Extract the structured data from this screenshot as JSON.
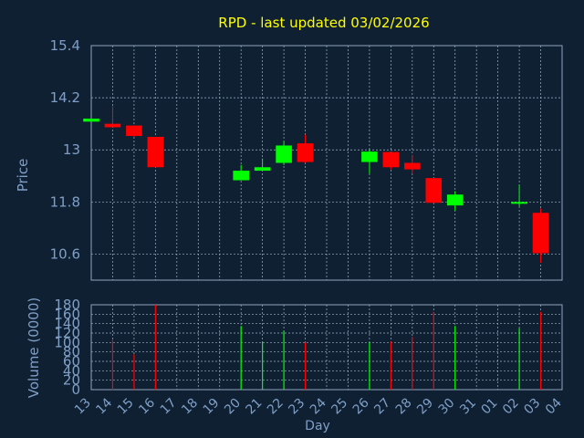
{
  "colors": {
    "background": "#0f2033",
    "title": "#ffff00",
    "axis_text": "#7f9fc7",
    "grid": "#9fb3c8",
    "axis_line": "#8fa4bc",
    "up": "#00ff00",
    "down": "#ff0000"
  },
  "chart_data": {
    "type": "candlestick",
    "title": "RPD - last updated 03/02/2026",
    "xlabel": "Day",
    "price_panel": {
      "ylabel": "Price",
      "ylim": [
        10.0,
        15.4
      ],
      "yticks": [
        "15.4",
        "14.2",
        "13",
        "11.8",
        "10.6"
      ],
      "ytick_values": [
        15.4,
        14.2,
        13.0,
        11.8,
        10.6
      ]
    },
    "volume_panel": {
      "ylabel": "Volume (0000)",
      "ylim": [
        0,
        180
      ],
      "yticks": [
        "180",
        "160",
        "140",
        "120",
        "100",
        "80",
        "60",
        "40",
        "20",
        "0"
      ],
      "ytick_values": [
        180,
        160,
        140,
        120,
        100,
        80,
        60,
        40,
        20,
        0
      ]
    },
    "x_tick_labels": [
      "13",
      "14",
      "15",
      "16",
      "17",
      "18",
      "19",
      "20",
      "21",
      "22",
      "23",
      "24",
      "25",
      "26",
      "27",
      "28",
      "29",
      "30",
      "31",
      "01",
      "02",
      "03",
      "04"
    ],
    "candles": [
      {
        "day": "13",
        "open": 13.65,
        "high": 13.72,
        "low": 13.65,
        "close": 13.72
      },
      {
        "day": "14",
        "open": 13.6,
        "high": 14.0,
        "low": 13.55,
        "close": 13.52
      },
      {
        "day": "15",
        "open": 13.56,
        "high": 13.56,
        "low": 13.3,
        "close": 13.32
      },
      {
        "day": "16",
        "open": 13.3,
        "high": 13.3,
        "low": 12.6,
        "close": 12.6
      },
      {
        "day": "20",
        "open": 12.3,
        "high": 12.65,
        "low": 12.3,
        "close": 12.52
      },
      {
        "day": "21",
        "open": 12.52,
        "high": 12.8,
        "low": 12.52,
        "close": 12.6
      },
      {
        "day": "22",
        "open": 12.7,
        "high": 13.2,
        "low": 12.65,
        "close": 13.1
      },
      {
        "day": "23",
        "open": 13.15,
        "high": 13.35,
        "low": 12.7,
        "close": 12.72
      },
      {
        "day": "26",
        "open": 12.72,
        "high": 13.0,
        "low": 12.45,
        "close": 12.96
      },
      {
        "day": "27",
        "open": 12.95,
        "high": 12.95,
        "low": 12.55,
        "close": 12.6
      },
      {
        "day": "28",
        "open": 12.7,
        "high": 12.88,
        "low": 12.45,
        "close": 12.55
      },
      {
        "day": "29",
        "open": 12.35,
        "high": 12.35,
        "low": 11.78,
        "close": 11.78
      },
      {
        "day": "30",
        "open": 11.72,
        "high": 12.05,
        "low": 11.6,
        "close": 11.97
      },
      {
        "day": "02",
        "open": 11.76,
        "high": 12.2,
        "low": 11.7,
        "close": 11.8
      },
      {
        "day": "03",
        "open": 11.55,
        "high": 11.65,
        "low": 10.4,
        "close": 10.62
      }
    ],
    "volume": [
      {
        "day": "14",
        "value": 105,
        "direction": "down"
      },
      {
        "day": "15",
        "value": 75,
        "direction": "down"
      },
      {
        "day": "16",
        "value": 180,
        "direction": "down"
      },
      {
        "day": "20",
        "value": 135,
        "direction": "up"
      },
      {
        "day": "21",
        "value": 102,
        "direction": "up"
      },
      {
        "day": "22",
        "value": 125,
        "direction": "up"
      },
      {
        "day": "23",
        "value": 100,
        "direction": "down"
      },
      {
        "day": "26",
        "value": 100,
        "direction": "up"
      },
      {
        "day": "27",
        "value": 102,
        "direction": "down"
      },
      {
        "day": "28",
        "value": 112,
        "direction": "down"
      },
      {
        "day": "29",
        "value": 165,
        "direction": "down"
      },
      {
        "day": "30",
        "value": 135,
        "direction": "up"
      },
      {
        "day": "02",
        "value": 130,
        "direction": "up"
      },
      {
        "day": "03",
        "value": 165,
        "direction": "down"
      }
    ],
    "grid": true
  }
}
